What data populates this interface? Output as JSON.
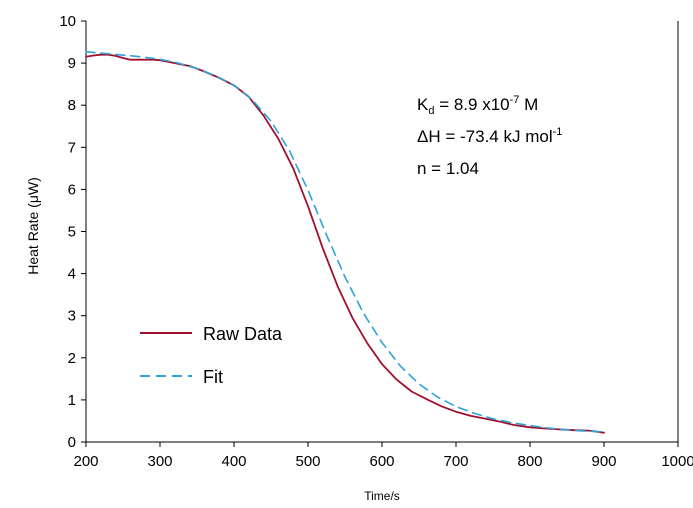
{
  "chart_data": {
    "type": "line",
    "title": "",
    "xlabel": "Time/s",
    "ylabel": "Heat Rate (μW)",
    "xlim": [
      200,
      1000
    ],
    "ylim": [
      0,
      10
    ],
    "xticks": [
      200,
      300,
      400,
      500,
      600,
      700,
      800,
      900,
      1000
    ],
    "yticks": [
      0,
      1,
      2,
      3,
      4,
      5,
      6,
      7,
      8,
      9,
      10
    ],
    "grid": false,
    "legend": "bottom-left",
    "series": [
      {
        "name": "Raw Data",
        "color": "#a0102f",
        "style": "solid",
        "x": [
          200,
          210,
          220,
          230,
          240,
          250,
          260,
          270,
          280,
          290,
          300,
          320,
          340,
          360,
          380,
          400,
          420,
          440,
          460,
          480,
          500,
          520,
          540,
          560,
          580,
          600,
          620,
          640,
          660,
          680,
          700,
          720,
          740,
          760,
          780,
          800,
          820,
          840,
          860,
          880,
          900
        ],
        "y": [
          9.15,
          9.18,
          9.2,
          9.2,
          9.17,
          9.12,
          9.08,
          9.08,
          9.08,
          9.08,
          9.07,
          9.0,
          8.93,
          8.8,
          8.65,
          8.47,
          8.2,
          7.75,
          7.2,
          6.5,
          5.6,
          4.6,
          3.7,
          2.95,
          2.35,
          1.85,
          1.48,
          1.2,
          1.02,
          0.85,
          0.72,
          0.62,
          0.55,
          0.48,
          0.4,
          0.35,
          0.32,
          0.3,
          0.28,
          0.27,
          0.22
        ]
      },
      {
        "name": "Fit",
        "color": "#2ea3d8",
        "style": "dashed",
        "x": [
          200,
          225,
          250,
          275,
          300,
          325,
          350,
          375,
          400,
          425,
          450,
          475,
          500,
          525,
          550,
          575,
          600,
          625,
          650,
          675,
          700,
          725,
          750,
          775,
          800,
          825,
          850,
          875,
          900
        ],
        "y": [
          9.27,
          9.23,
          9.19,
          9.15,
          9.09,
          9.0,
          8.87,
          8.7,
          8.47,
          8.12,
          7.62,
          6.92,
          5.98,
          4.92,
          3.92,
          3.06,
          2.36,
          1.8,
          1.38,
          1.07,
          0.84,
          0.68,
          0.55,
          0.46,
          0.39,
          0.33,
          0.29,
          0.26,
          0.24
        ]
      }
    ]
  },
  "annotations": {
    "line1_pre": "K",
    "line1_sub": "d",
    "line1_mid": " = 8.9 x10",
    "line1_sup": "-7",
    "line1_post": " M",
    "line2_pre": "ΔH = -73.4 kJ mol",
    "line2_sup": "-1",
    "line3": "n = 1.04"
  },
  "legend": {
    "raw_label": "Raw Data",
    "fit_label": "Fit"
  }
}
